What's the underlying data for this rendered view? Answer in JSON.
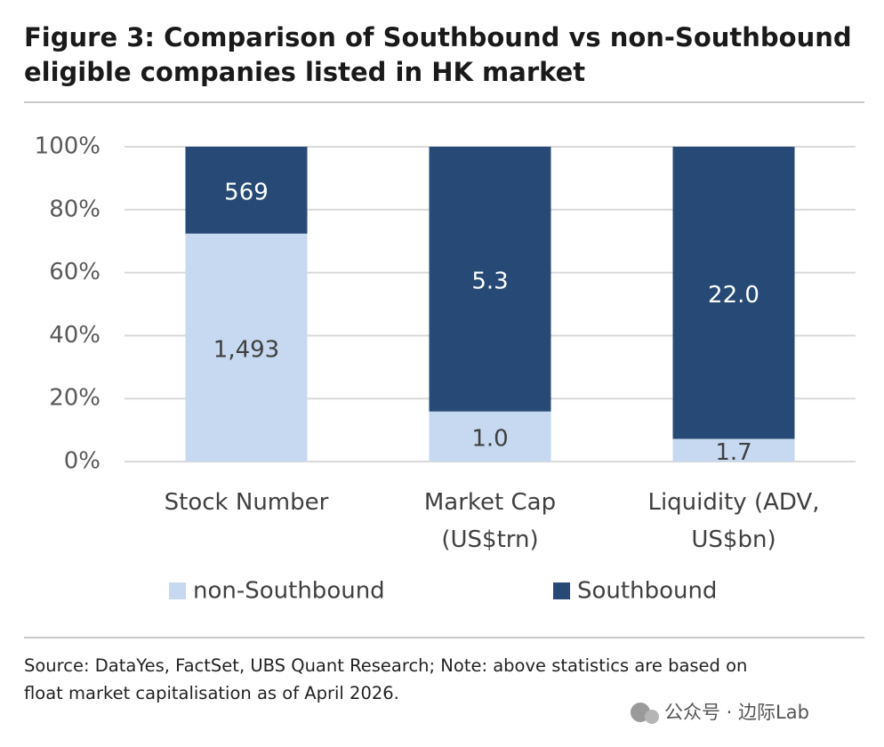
{
  "chart_data": {
    "type": "stacked_bar",
    "title": "Figure 3: Comparison of Southbound vs non-Southbound\neligible companies listed in HK market",
    "categories": [
      "Stock Number",
      "Market Cap\n(US$trn)",
      "Liquidity (ADV,\nUS$bn)"
    ],
    "series": [
      {
        "name": "non-Southbound",
        "color": "#c6d9f0",
        "values": [
          72.4,
          15.9,
          7.2
        ],
        "value_labels": [
          "1,493",
          "1.0",
          "1.7"
        ]
      },
      {
        "name": "Southbound",
        "color": "#264a75",
        "values": [
          27.6,
          84.1,
          92.8
        ],
        "value_labels": [
          "569",
          "5.3",
          "22.0"
        ]
      }
    ],
    "ylim": [
      0,
      100
    ],
    "yticks": [
      {
        "value": 0,
        "label": "0%"
      },
      {
        "value": 20,
        "label": "20%"
      },
      {
        "value": 40,
        "label": "40%"
      },
      {
        "value": 60,
        "label": "60%"
      },
      {
        "value": 80,
        "label": "80%"
      },
      {
        "value": 100,
        "label": "100%"
      }
    ],
    "grid": true,
    "legend": "bottom",
    "source": "Source: DataYes, FactSet, UBS Quant Research; Note: above statistics are based on\nfloat market capitalisation as of April 2026.",
    "watermark": "公众号 · 边际Lab"
  }
}
